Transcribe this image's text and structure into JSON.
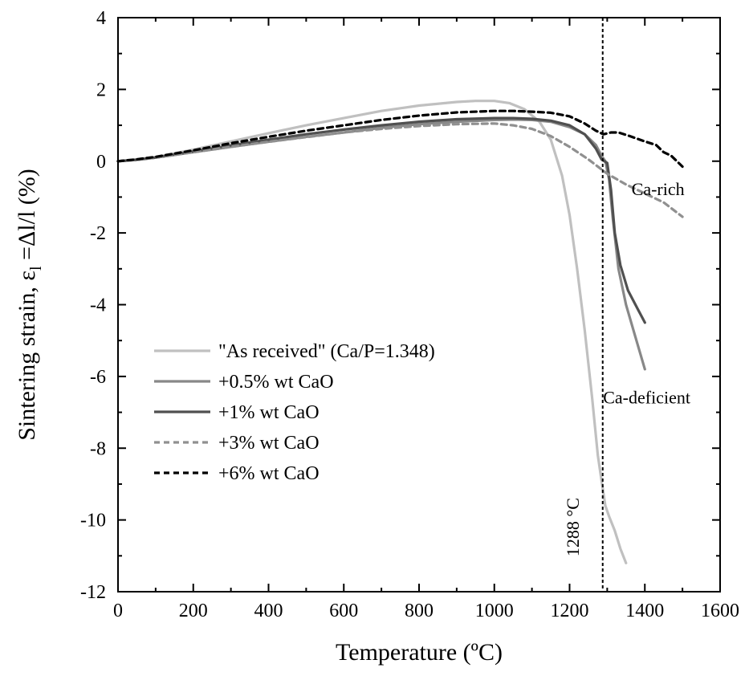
{
  "chart_data": {
    "type": "line",
    "xlabel": "Temperature (ºC)",
    "ylabel_main": "Sintering strain, ε",
    "ylabel_sub": "l",
    "ylabel_rest": " =Δl/l (%)",
    "xlim": [
      0,
      1600
    ],
    "ylim": [
      -12,
      4
    ],
    "x_ticks": [
      0,
      200,
      400,
      600,
      800,
      1000,
      1200,
      1400,
      1600
    ],
    "y_ticks": [
      4,
      2,
      0,
      -2,
      -4,
      -6,
      -8,
      -10,
      -12
    ],
    "grid": false,
    "legend_position": "center-left",
    "series": [
      {
        "name": "\"As received\" (Ca/P=1.348)",
        "color": "#c0c0c0",
        "dash": "solid",
        "x": [
          0,
          50,
          100,
          200,
          300,
          400,
          500,
          600,
          700,
          800,
          900,
          950,
          1000,
          1040,
          1080,
          1120,
          1150,
          1180,
          1200,
          1220,
          1240,
          1260,
          1275,
          1285,
          1295,
          1305,
          1320,
          1335,
          1350
        ],
        "y": [
          0,
          0.05,
          0.12,
          0.32,
          0.55,
          0.78,
          1.0,
          1.2,
          1.4,
          1.55,
          1.65,
          1.68,
          1.68,
          1.62,
          1.45,
          1.1,
          0.6,
          -0.4,
          -1.5,
          -3.0,
          -4.7,
          -6.6,
          -8.2,
          -8.9,
          -9.6,
          -9.9,
          -10.3,
          -10.8,
          -11.2
        ]
      },
      {
        "name": "+0.5% wt CaO",
        "color": "#888888",
        "dash": "solid",
        "x": [
          0,
          50,
          100,
          200,
          300,
          400,
          500,
          600,
          700,
          800,
          900,
          1000,
          1050,
          1100,
          1150,
          1200,
          1240,
          1270,
          1285,
          1295,
          1305,
          1315,
          1330,
          1350,
          1375,
          1400
        ],
        "y": [
          0,
          0.04,
          0.1,
          0.25,
          0.4,
          0.54,
          0.68,
          0.8,
          0.93,
          1.03,
          1.1,
          1.15,
          1.16,
          1.15,
          1.1,
          0.95,
          0.75,
          0.45,
          0.15,
          0.0,
          -0.5,
          -1.6,
          -3.0,
          -4.0,
          -4.9,
          -5.8
        ]
      },
      {
        "name": "+1% wt CaO",
        "color": "#505050",
        "dash": "solid",
        "x": [
          0,
          50,
          100,
          200,
          300,
          400,
          500,
          600,
          700,
          800,
          900,
          1000,
          1050,
          1100,
          1150,
          1200,
          1240,
          1270,
          1285,
          1300,
          1310,
          1320,
          1335,
          1355,
          1380,
          1400
        ],
        "y": [
          0,
          0.04,
          0.1,
          0.27,
          0.44,
          0.6,
          0.75,
          0.88,
          1.0,
          1.1,
          1.17,
          1.2,
          1.2,
          1.18,
          1.13,
          1.0,
          0.75,
          0.35,
          0.05,
          -0.05,
          -0.8,
          -2.0,
          -2.9,
          -3.6,
          -4.1,
          -4.5
        ]
      },
      {
        "name": "+3% wt CaO",
        "color": "#909090",
        "dash": "dashed",
        "x": [
          0,
          50,
          100,
          200,
          300,
          400,
          500,
          600,
          700,
          800,
          900,
          1000,
          1050,
          1100,
          1150,
          1200,
          1250,
          1300,
          1350,
          1400,
          1450,
          1500
        ],
        "y": [
          0,
          0.04,
          0.1,
          0.25,
          0.4,
          0.54,
          0.67,
          0.8,
          0.9,
          0.98,
          1.03,
          1.05,
          1.0,
          0.9,
          0.7,
          0.4,
          0.05,
          -0.35,
          -0.65,
          -0.9,
          -1.15,
          -1.55
        ]
      },
      {
        "name": "+6% wt CaO",
        "color": "#000000",
        "dash": "dashed",
        "x": [
          0,
          50,
          100,
          200,
          300,
          400,
          500,
          600,
          700,
          800,
          900,
          1000,
          1050,
          1100,
          1150,
          1200,
          1240,
          1270,
          1290,
          1310,
          1330,
          1360,
          1400,
          1430,
          1450,
          1470,
          1500
        ],
        "y": [
          0,
          0.05,
          0.12,
          0.3,
          0.5,
          0.68,
          0.85,
          1.0,
          1.15,
          1.27,
          1.36,
          1.4,
          1.4,
          1.38,
          1.35,
          1.25,
          1.05,
          0.85,
          0.75,
          0.8,
          0.8,
          0.7,
          0.55,
          0.45,
          0.25,
          0.15,
          -0.15
        ]
      }
    ],
    "vline": {
      "x": 1288,
      "label": "1288 °C"
    },
    "annotations": [
      {
        "text": "Ca-rich",
        "x": 1435,
        "y": -0.95
      },
      {
        "text": "Ca-deficient",
        "x": 1405,
        "y": -6.75
      }
    ]
  }
}
